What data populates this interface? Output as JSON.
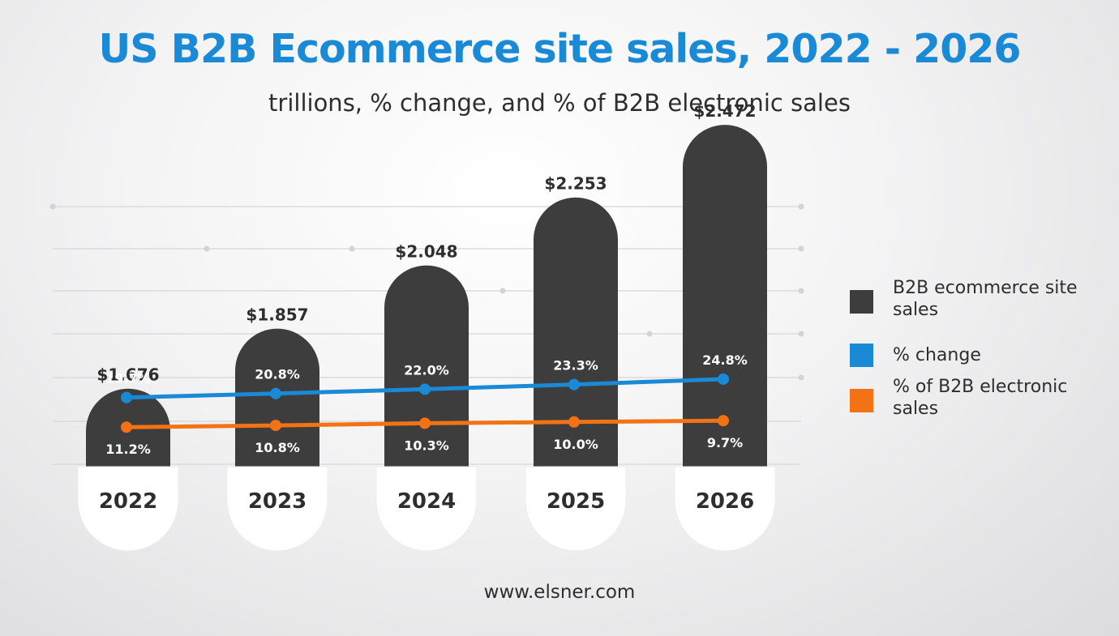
{
  "chart_data": {
    "type": "bar",
    "title": "US B2B Ecommerce site sales, 2022 - 2026",
    "subtitle": "trillions, % change, and % of B2B electronic sales",
    "categories": [
      "2022",
      "2023",
      "2024",
      "2025",
      "2026"
    ],
    "series": [
      {
        "name": "B2B ecommerce site sales",
        "type": "bar",
        "color": "#3d3d3d",
        "values": [
          1.676,
          1.857,
          2.048,
          2.253,
          2.472
        ],
        "labels": [
          "$1.676",
          "$1.857",
          "$2.048",
          "$2.253",
          "$2.472"
        ]
      },
      {
        "name": "% change",
        "type": "line",
        "color": "#1a8ad6",
        "values": [
          19.7,
          20.8,
          22.0,
          23.3,
          24.8
        ],
        "labels": [
          "19.7%",
          "20.8%",
          "22.0%",
          "23.3%",
          "24.8%"
        ]
      },
      {
        "name": "% of B2B electronic sales",
        "type": "line",
        "color": "#f47216",
        "values": [
          11.2,
          10.8,
          10.3,
          10.0,
          9.7
        ],
        "labels": [
          "11.2%",
          "10.8%",
          "10.3%",
          "10.0%",
          "9.7%"
        ]
      }
    ],
    "legend": {
      "position": "right",
      "items": [
        {
          "label": "B2B ecommerce site sales",
          "color": "#3d3d3d"
        },
        {
          "label": "% change",
          "color": "#1a8ad6"
        },
        {
          "label": "% of B2B electronic sales",
          "color": "#f47216"
        }
      ]
    },
    "grid": true
  },
  "footer": {
    "text": "www.elsner.com"
  }
}
